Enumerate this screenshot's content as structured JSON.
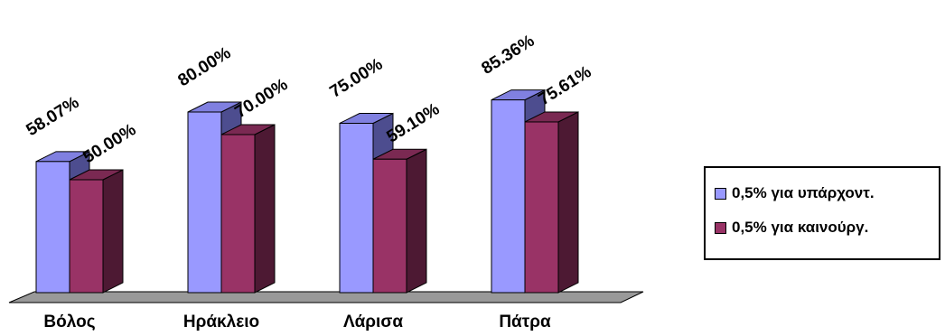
{
  "chart_data": {
    "type": "bar",
    "categories": [
      "Βόλος",
      "Ηράκλειο",
      "Λάρισα",
      "Πάτρα"
    ],
    "series": [
      {
        "name": "0,5% για υπάρχοντ.",
        "values": [
          58.07,
          80.0,
          75.0,
          85.36
        ],
        "labels": [
          "58.07%",
          "80.00%",
          "75.00%",
          "85.36%"
        ]
      },
      {
        "name": "0,5% για καινούργ.",
        "values": [
          50.0,
          70.0,
          59.1,
          75.61
        ],
        "labels": [
          "50.00%",
          "70.00%",
          "59.10%",
          "75.61%"
        ]
      }
    ],
    "title": "",
    "xlabel": "",
    "ylabel": "",
    "ylim": [
      0,
      100
    ],
    "grid": false,
    "legend_position": "right",
    "colors": {
      "series1_front": "#9999FF",
      "series1_top": "#8080E0",
      "series1_side": "#4D4D8F",
      "series2_front": "#993366",
      "series2_top": "#7A2952",
      "series2_side": "#4D1933",
      "floor": "#999999"
    }
  }
}
